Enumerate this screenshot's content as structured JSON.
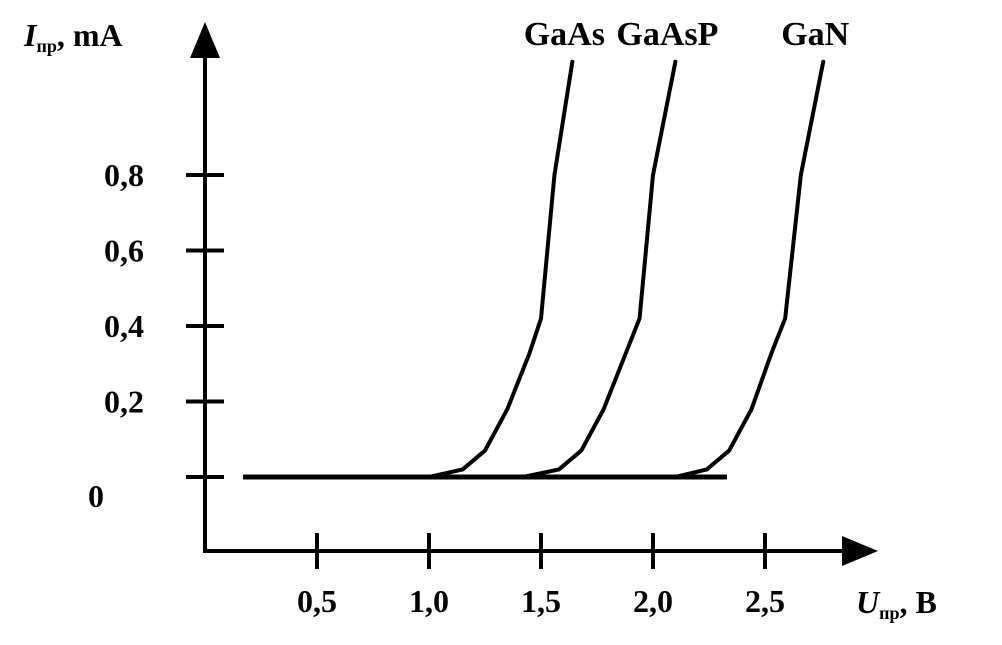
{
  "chart_data": {
    "type": "line",
    "title": "",
    "y_axis": {
      "symbol": "I",
      "subscript": "пр",
      "unit": ", mA",
      "ticks": [
        {
          "value": 0.0,
          "label": "0"
        },
        {
          "value": 0.2,
          "label": "0,2"
        },
        {
          "value": 0.4,
          "label": "0,4"
        },
        {
          "value": 0.6,
          "label": "0,6"
        },
        {
          "value": 0.8,
          "label": "0,8"
        }
      ]
    },
    "x_axis": {
      "symbol": "U",
      "subscript": "пр",
      "unit": ", В",
      "ticks": [
        {
          "value": 0.5,
          "label": "0,5"
        },
        {
          "value": 1.0,
          "label": "1,0"
        },
        {
          "value": 1.5,
          "label": "1,5"
        },
        {
          "value": 2.0,
          "label": "2,0"
        },
        {
          "value": 2.5,
          "label": "2,5"
        }
      ]
    },
    "baseline_x_range": [
      0.17,
      2.33
    ],
    "series": [
      {
        "name": "GaAs",
        "x": [
          1.0,
          1.15,
          1.25,
          1.35,
          1.45,
          1.5,
          1.56,
          1.64
        ],
        "y": [
          0.0,
          0.02,
          0.07,
          0.18,
          0.33,
          0.42,
          0.8,
          1.1
        ]
      },
      {
        "name": "GaAsP",
        "x": [
          1.42,
          1.58,
          1.68,
          1.78,
          1.88,
          1.94,
          2.0,
          2.1
        ],
        "y": [
          0.0,
          0.02,
          0.07,
          0.18,
          0.33,
          0.42,
          0.8,
          1.1
        ]
      },
      {
        "name": "GaN",
        "x": [
          2.1,
          2.24,
          2.34,
          2.44,
          2.53,
          2.59,
          2.66,
          2.76
        ],
        "y": [
          0.0,
          0.02,
          0.07,
          0.18,
          0.33,
          0.42,
          0.8,
          1.1
        ]
      }
    ]
  }
}
